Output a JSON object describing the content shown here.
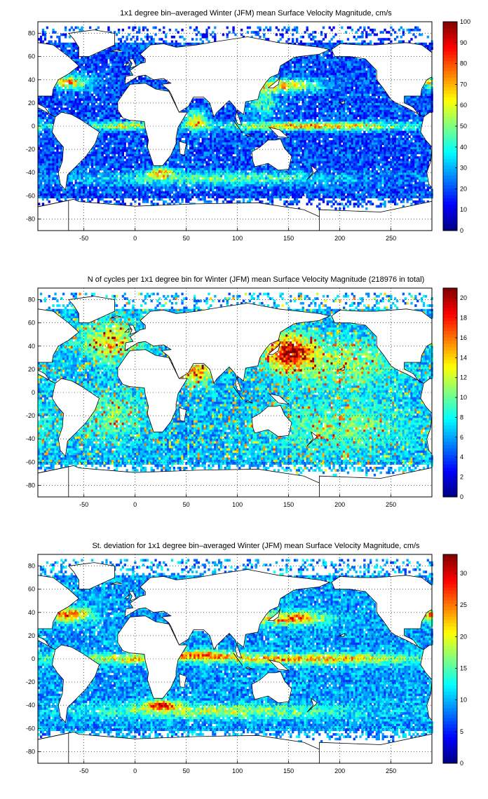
{
  "chart_data": [
    {
      "type": "heatmap",
      "title": "1x1 degree bin–averaged Winter (JFM) mean Surface Velocity Magnitude, cm/s",
      "xlim": [
        -95,
        290
      ],
      "ylim": [
        -90,
        90
      ],
      "xticks": [
        -50,
        0,
        50,
        100,
        150,
        200,
        250
      ],
      "yticks": [
        -80,
        -60,
        -40,
        -20,
        0,
        20,
        40,
        60,
        80
      ],
      "colorbar": {
        "range": [
          0,
          100
        ],
        "ticks": [
          0,
          10,
          20,
          30,
          40,
          50,
          60,
          70,
          80,
          90,
          100
        ],
        "colormap": "jet"
      },
      "grid": true,
      "background_level": 0.2,
      "hotspots": [
        {
          "lon": -65,
          "lat": 38,
          "sigma_lon": 14,
          "sigma_lat": 4,
          "amp": 0.55
        },
        {
          "lon": 145,
          "lat": 35,
          "sigma_lon": 25,
          "sigma_lat": 4,
          "amp": 0.5
        },
        {
          "lon": 175,
          "lat": 0,
          "sigma_lon": 70,
          "sigma_lat": 2.5,
          "amp": 0.55
        },
        {
          "lon": -10,
          "lat": 0,
          "sigma_lon": 25,
          "sigma_lat": 2.5,
          "amp": 0.4
        },
        {
          "lon": 25,
          "lat": -40,
          "sigma_lon": 8,
          "sigma_lat": 3,
          "amp": 0.5
        },
        {
          "lon": 80,
          "lat": -45,
          "sigma_lon": 90,
          "sigma_lat": 4,
          "amp": 0.3
        },
        {
          "lon": 60,
          "lat": 5,
          "sigma_lon": 8,
          "sigma_lat": 6,
          "amp": 0.45
        },
        {
          "lon": 125,
          "lat": 20,
          "sigma_lon": 10,
          "sigma_lat": 8,
          "amp": 0.3
        }
      ]
    },
    {
      "type": "heatmap",
      "title": "N of cycles per 1x1 degree bin for Winter (JFM) mean Surface Velocity Magnitude (218976 in total)",
      "xlim": [
        -95,
        290
      ],
      "ylim": [
        -90,
        90
      ],
      "xticks": [
        -50,
        0,
        50,
        100,
        150,
        200,
        250
      ],
      "yticks": [
        -80,
        -60,
        -40,
        -20,
        0,
        20,
        40,
        60,
        80
      ],
      "colorbar": {
        "range": [
          0,
          21
        ],
        "ticks": [
          0,
          2,
          4,
          6,
          8,
          10,
          12,
          14,
          16,
          18,
          20
        ],
        "colormap": "jet"
      },
      "grid": true,
      "background_level": 0.3,
      "hotspots": [
        {
          "lon": 150,
          "lat": 35,
          "sigma_lon": 15,
          "sigma_lat": 10,
          "amp": 0.65
        },
        {
          "lon": -25,
          "lat": 45,
          "sigma_lon": 20,
          "sigma_lat": 12,
          "amp": 0.35
        },
        {
          "lon": 60,
          "lat": 18,
          "sigma_lon": 10,
          "sigma_lat": 8,
          "amp": 0.45
        },
        {
          "lon": 200,
          "lat": 25,
          "sigma_lon": 40,
          "sigma_lat": 15,
          "amp": 0.25
        },
        {
          "lon": 200,
          "lat": -30,
          "sigma_lon": 50,
          "sigma_lat": 15,
          "amp": 0.2
        },
        {
          "lon": -20,
          "lat": -20,
          "sigma_lon": 20,
          "sigma_lat": 15,
          "amp": 0.2
        }
      ]
    },
    {
      "type": "heatmap",
      "title": "St. deviation for 1x1 degree bin–averaged Winter (JFM) mean Surface Velocity Magnitude, cm/s",
      "xlim": [
        -95,
        290
      ],
      "ylim": [
        -90,
        90
      ],
      "xticks": [
        -50,
        0,
        50,
        100,
        150,
        200,
        250
      ],
      "yticks": [
        -80,
        -60,
        -40,
        -20,
        0,
        20,
        40,
        60,
        80
      ],
      "colorbar": {
        "range": [
          0,
          33
        ],
        "ticks": [
          0,
          5,
          10,
          15,
          20,
          25,
          30
        ],
        "colormap": "jet"
      },
      "grid": true,
      "background_level": 0.28,
      "hotspots": [
        {
          "lon": -65,
          "lat": 38,
          "sigma_lon": 15,
          "sigma_lat": 4,
          "amp": 0.6
        },
        {
          "lon": 150,
          "lat": 35,
          "sigma_lon": 25,
          "sigma_lat": 4,
          "amp": 0.55
        },
        {
          "lon": 175,
          "lat": 0,
          "sigma_lon": 70,
          "sigma_lat": 3,
          "amp": 0.5
        },
        {
          "lon": 60,
          "lat": 3,
          "sigma_lon": 25,
          "sigma_lat": 3,
          "amp": 0.5
        },
        {
          "lon": 25,
          "lat": -40,
          "sigma_lon": 12,
          "sigma_lat": 3,
          "amp": 0.55
        },
        {
          "lon": 80,
          "lat": -45,
          "sigma_lon": 90,
          "sigma_lat": 4,
          "amp": 0.3
        },
        {
          "lon": -10,
          "lat": 0,
          "sigma_lon": 25,
          "sigma_lat": 3,
          "amp": 0.4
        }
      ]
    }
  ]
}
